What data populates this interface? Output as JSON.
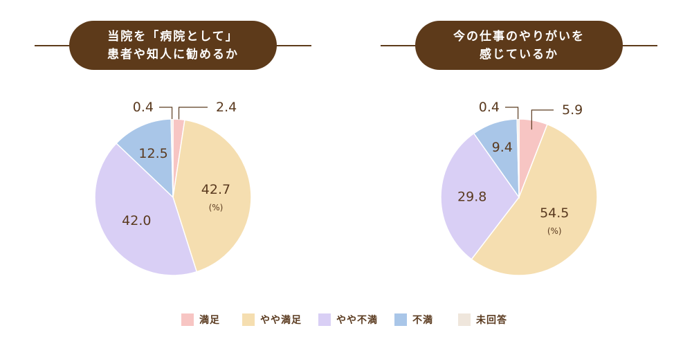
{
  "colors": {
    "satisfied": "#f7c5c3",
    "somewhat_satisfied": "#f5deb0",
    "somewhat_dissatisfied": "#d9cff5",
    "dissatisfied": "#a9c6e8",
    "no_answer": "#efe6dc",
    "title_bg": "#5d3a1a",
    "text": "#5a3a1f"
  },
  "legend": [
    {
      "label": "満足",
      "color_key": "satisfied"
    },
    {
      "label": "やや満足",
      "color_key": "somewhat_satisfied"
    },
    {
      "label": "やや不満",
      "color_key": "somewhat_dissatisfied"
    },
    {
      "label": "不満",
      "color_key": "dissatisfied"
    },
    {
      "label": "未回答",
      "color_key": "no_answer"
    }
  ],
  "unit_label": "(%)",
  "chart_data": [
    {
      "type": "pie",
      "title": [
        "当院を「病院として」",
        "患者や知人に勧めるか"
      ],
      "unit": "%",
      "categories": [
        "満足",
        "やや満足",
        "やや不満",
        "不満",
        "未回答"
      ],
      "values": [
        2.4,
        42.7,
        42.0,
        12.5,
        0.4
      ],
      "value_labels": [
        "2.4",
        "42.7",
        "42.0",
        "12.5",
        "0.4"
      ]
    },
    {
      "type": "pie",
      "title": [
        "今の仕事のやりがいを",
        "感じているか"
      ],
      "unit": "%",
      "categories": [
        "満足",
        "やや満足",
        "やや不満",
        "不満",
        "未回答"
      ],
      "values": [
        5.9,
        54.5,
        29.8,
        9.4,
        0.4
      ],
      "value_labels": [
        "5.9",
        "54.5",
        "29.8",
        "9.4",
        "0.4"
      ]
    }
  ]
}
